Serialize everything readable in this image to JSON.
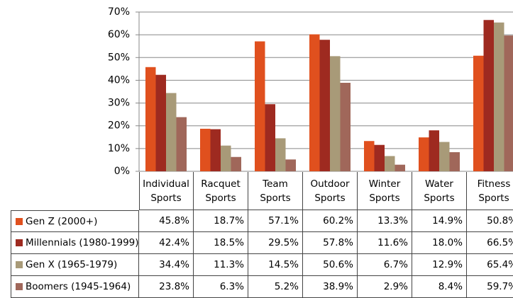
{
  "chart_data": {
    "type": "bar",
    "categories": [
      "Individual Sports",
      "Racquet Sports",
      "Team Sports",
      "Outdoor Sports",
      "Winter Sports",
      "Water Sports",
      "Fitness Sports"
    ],
    "series": [
      {
        "name": "Gen Z (2000+)",
        "color": "#e0501e",
        "values": [
          45.8,
          18.7,
          57.1,
          60.2,
          13.3,
          14.9,
          50.8
        ],
        "value_labels": [
          "45.8%",
          "18.7%",
          "57.1%",
          "60.2%",
          "13.3%",
          "14.9%",
          "50.8%"
        ]
      },
      {
        "name": "Millennials (1980-1999)",
        "color": "#9e2a20",
        "values": [
          42.4,
          18.5,
          29.5,
          57.8,
          11.6,
          18.0,
          66.5
        ],
        "value_labels": [
          "42.4%",
          "18.5%",
          "29.5%",
          "57.8%",
          "11.6%",
          "18.0%",
          "66.5%"
        ]
      },
      {
        "name": "Gen X (1965-1979)",
        "color": "#a89a78",
        "values": [
          34.4,
          11.3,
          14.5,
          50.6,
          6.7,
          12.9,
          65.4
        ],
        "value_labels": [
          "34.4%",
          "11.3%",
          "14.5%",
          "50.6%",
          "6.7%",
          "12.9%",
          "65.4%"
        ]
      },
      {
        "name": "Boomers (1945-1964)",
        "color": "#a0675a",
        "values": [
          23.8,
          6.3,
          5.2,
          38.9,
          2.9,
          8.4,
          59.7
        ],
        "value_labels": [
          "23.8%",
          "6.3%",
          "5.2%",
          "38.9%",
          "2.9%",
          "8.4%",
          "59.7%"
        ]
      }
    ],
    "ylim": [
      0,
      70
    ],
    "yticks": [
      {
        "value": 0,
        "label": "0%"
      },
      {
        "value": 10,
        "label": "10%"
      },
      {
        "value": 20,
        "label": "20%"
      },
      {
        "value": 30,
        "label": "30%"
      },
      {
        "value": 40,
        "label": "40%"
      },
      {
        "value": 50,
        "label": "50%"
      },
      {
        "value": 60,
        "label": "60%"
      },
      {
        "value": 70,
        "label": "70%"
      }
    ],
    "grid": true
  }
}
